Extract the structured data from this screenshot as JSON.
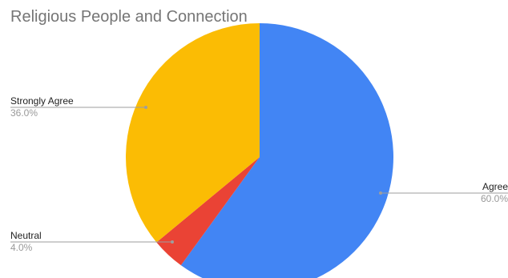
{
  "chart_data": {
    "type": "pie",
    "title": "Religious People and Connection",
    "slices": [
      {
        "label": "Agree",
        "value": 60.0,
        "pct_label": "60.0%",
        "color": "#4285F4"
      },
      {
        "label": "Neutral",
        "value": 4.0,
        "pct_label": "4.0%",
        "color": "#EA4335"
      },
      {
        "label": "Strongly Agree",
        "value": 36.0,
        "pct_label": "36.0%",
        "color": "#FBBC04"
      }
    ],
    "legend": "none",
    "labels_position": "outside-with-leader-lines"
  }
}
